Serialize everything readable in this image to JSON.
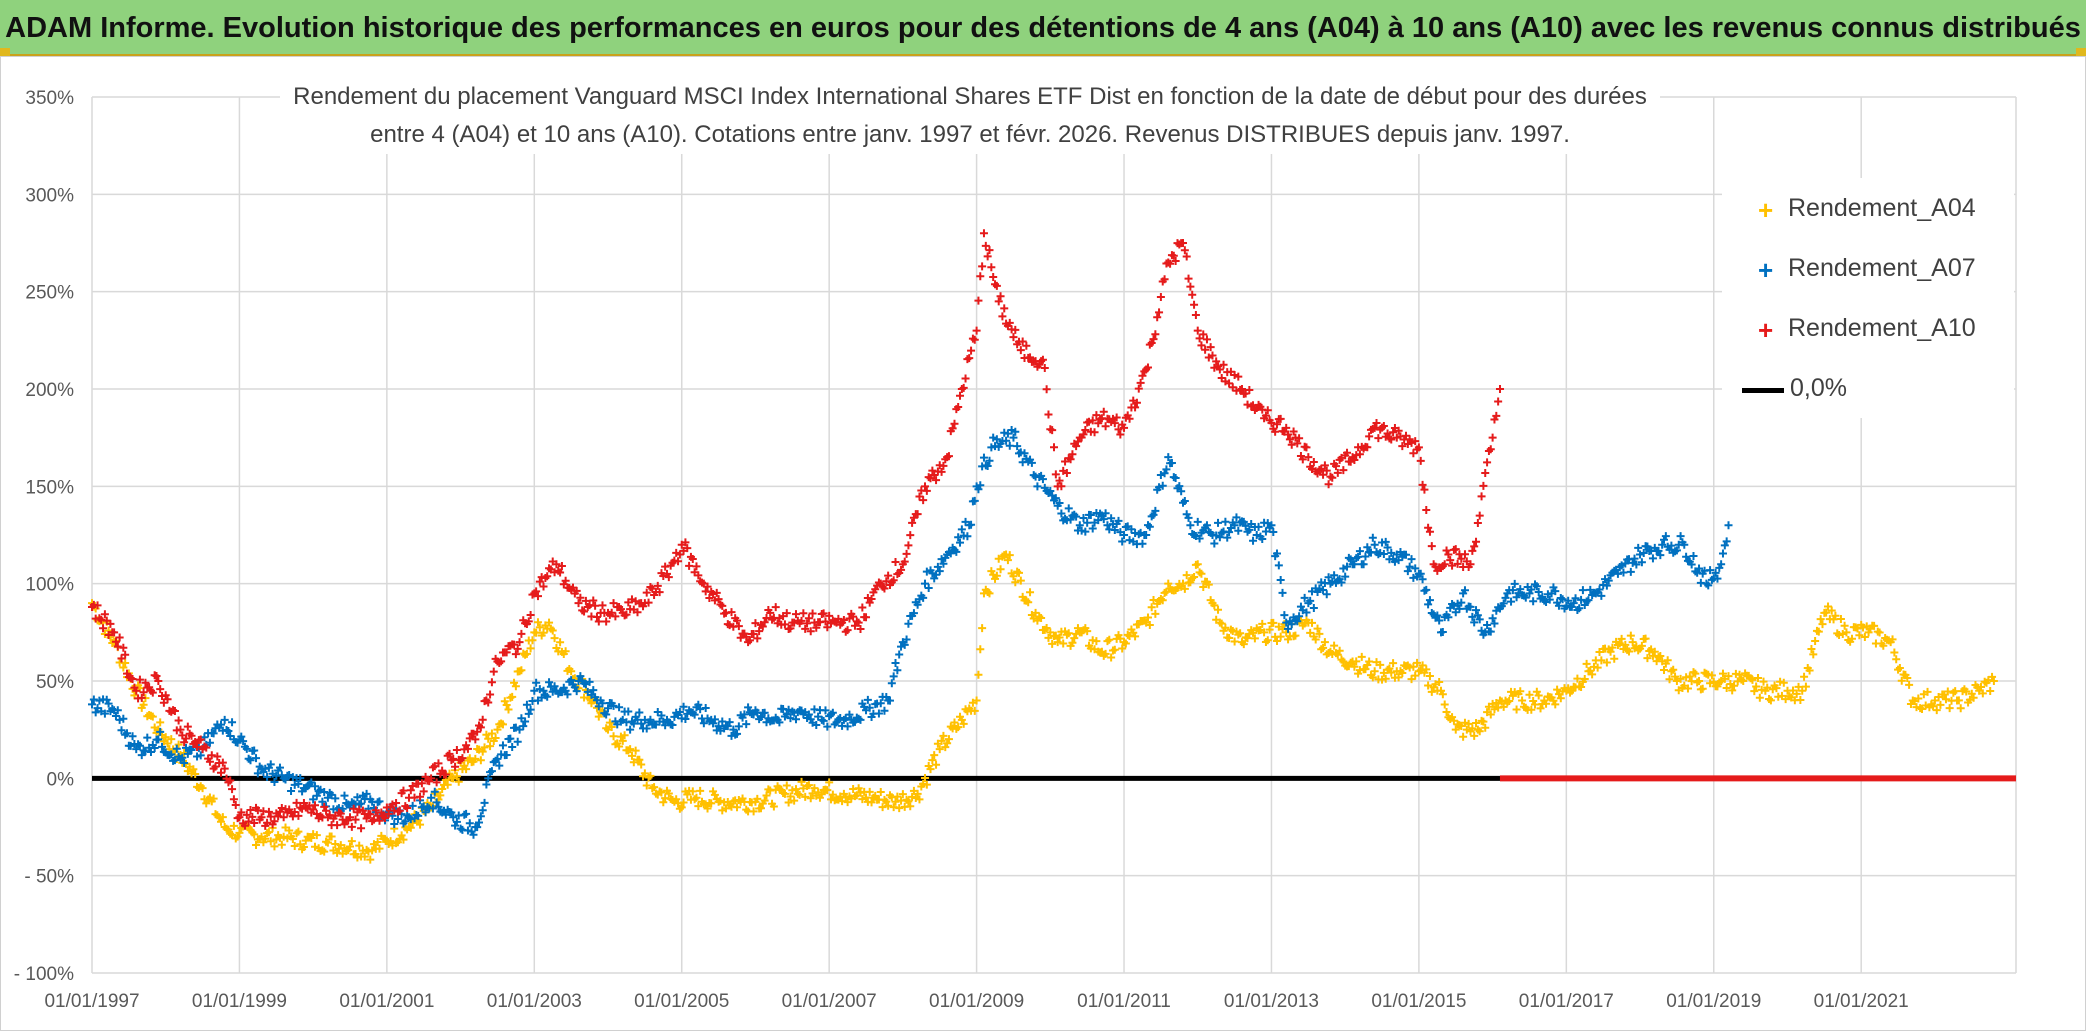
{
  "header": {
    "title": "ADAM Informe. Evolution historique des performances en euros pour des détentions de 4 ans (A04) à 10 ans (A10) avec les revenus connus distribués"
  },
  "chart_data": {
    "type": "scatter",
    "title_line1": "Rendement du placement Vanguard MSCI Index International Shares ETF Dist en fonction de la date de début pour des durées",
    "title_line2": "entre 4 (A04) et 10 ans (A10). Cotations entre janv. 1997 et févr. 2026. Revenus DISTRIBUES depuis janv. 1997.",
    "ylim": [
      -100,
      350
    ],
    "y_ticks": [
      -100,
      -50,
      0,
      50,
      100,
      150,
      200,
      250,
      300,
      350
    ],
    "y_tick_labels": [
      "- 100%",
      "- 50%",
      "0%",
      "50%",
      "100%",
      "150%",
      "200%",
      "250%",
      "300%",
      "350%"
    ],
    "x_ticks": [
      1997,
      1999,
      2001,
      2003,
      2005,
      2007,
      2009,
      2011,
      2013,
      2015,
      2017,
      2019,
      2021
    ],
    "x_tick_labels": [
      "01/01/1997",
      "01/01/1999",
      "01/01/2001",
      "01/01/2003",
      "01/01/2005",
      "01/01/2007",
      "01/01/2009",
      "01/01/2011",
      "01/01/2013",
      "01/01/2015",
      "01/01/2017",
      "01/01/2019",
      "01/01/2021"
    ],
    "xlim": [
      1997,
      2023.1
    ],
    "grid": true,
    "legend_position": "top-right",
    "series": [
      {
        "name": "Rendement_A04",
        "color": "#ffc000",
        "marker": "+",
        "x": [
          1997.0,
          1997.3,
          1997.6,
          1997.9,
          1998.2,
          1998.5,
          1998.8,
          1999.0,
          1999.3,
          1999.6,
          1999.9,
          2000.2,
          2000.5,
          2000.8,
          2001.0,
          2001.3,
          2001.6,
          2001.9,
          2002.2,
          2002.5,
          2002.8,
          2003.0,
          2003.2,
          2003.5,
          2003.8,
          2004.0,
          2004.3,
          2004.6,
          2004.9,
          2005.2,
          2005.5,
          2005.8,
          2006.0,
          2006.4,
          2006.8,
          2007.2,
          2007.6,
          2007.9,
          2008.2,
          2008.5,
          2008.8,
          2009.0,
          2009.1,
          2009.4,
          2009.8,
          2010.1,
          2010.4,
          2010.7,
          2011.0,
          2011.3,
          2011.6,
          2011.8,
          2012.0,
          2012.3,
          2012.6,
          2012.9,
          2013.2,
          2013.5,
          2013.8,
          2014.1,
          2014.4,
          2014.7,
          2015.0,
          2015.3,
          2015.5,
          2015.8,
          2016.1,
          2016.4,
          2016.7,
          2017.0,
          2017.3,
          2017.6,
          2017.9,
          2018.2,
          2018.5,
          2018.8,
          2019.1,
          2019.4,
          2019.7,
          2020.0,
          2020.2,
          2020.5,
          2020.8,
          2021.1,
          2021.4,
          2021.7,
          2022.0,
          2022.3,
          2022.6,
          2022.8
        ],
        "y": [
          90,
          70,
          45,
          25,
          12,
          -5,
          -25,
          -28,
          -30,
          -30,
          -32,
          -33,
          -35,
          -37,
          -32,
          -25,
          -15,
          0,
          10,
          25,
          55,
          75,
          80,
          55,
          40,
          25,
          15,
          -5,
          -12,
          -10,
          -12,
          -12,
          -12,
          -8,
          -5,
          -8,
          -10,
          -12,
          -8,
          15,
          30,
          40,
          95,
          115,
          85,
          70,
          75,
          65,
          70,
          80,
          100,
          100,
          110,
          80,
          70,
          75,
          75,
          80,
          65,
          60,
          55,
          55,
          55,
          45,
          25,
          25,
          40,
          40,
          40,
          45,
          55,
          65,
          70,
          65,
          50,
          50,
          50,
          50,
          45,
          45,
          45,
          85,
          75,
          75,
          70,
          40,
          40,
          40,
          45,
          50
        ]
      },
      {
        "name": "Rendement_A07",
        "color": "#0070c0",
        "marker": "+",
        "x": [
          1997.0,
          1997.3,
          1997.6,
          1997.9,
          1998.2,
          1998.5,
          1998.8,
          1999.0,
          1999.3,
          1999.6,
          1999.9,
          2000.2,
          2000.5,
          2000.8,
          2001.0,
          2001.3,
          2001.6,
          2001.9,
          2002.2,
          2002.5,
          2002.8,
          2003.0,
          2003.3,
          2003.6,
          2003.9,
          2004.2,
          2004.5,
          2004.8,
          2005.1,
          2005.4,
          2005.7,
          2006.0,
          2006.3,
          2006.6,
          2006.9,
          2007.2,
          2007.5,
          2007.8,
          2008.0,
          2008.3,
          2008.6,
          2008.9,
          2009.0,
          2009.2,
          2009.5,
          2009.8,
          2010.1,
          2010.4,
          2010.7,
          2011.0,
          2011.3,
          2011.6,
          2011.9,
          2012.2,
          2012.5,
          2012.8,
          2013.0,
          2013.2,
          2013.5,
          2013.8,
          2014.1,
          2014.4,
          2014.7,
          2015.0,
          2015.3,
          2015.6,
          2015.9,
          2016.2,
          2016.5,
          2016.8,
          2017.1,
          2017.4,
          2017.7,
          2018.0,
          2018.3,
          2018.6,
          2018.9,
          2019.1,
          2019.2
        ],
        "y": [
          38,
          35,
          15,
          20,
          10,
          15,
          30,
          20,
          5,
          0,
          -5,
          -10,
          -15,
          -12,
          -18,
          -20,
          -10,
          -20,
          -25,
          10,
          25,
          45,
          45,
          50,
          40,
          30,
          30,
          30,
          35,
          30,
          25,
          35,
          30,
          35,
          30,
          30,
          35,
          40,
          70,
          100,
          115,
          130,
          150,
          170,
          175,
          155,
          140,
          130,
          135,
          125,
          125,
          165,
          130,
          125,
          130,
          125,
          130,
          80,
          90,
          100,
          110,
          120,
          115,
          105,
          75,
          95,
          75,
          95,
          95,
          95,
          90,
          95,
          105,
          115,
          120,
          120,
          100,
          110,
          130
        ]
      },
      {
        "name": "Rendement_A10",
        "color": "#e51b1b",
        "marker": "+",
        "x": [
          1997.0,
          1997.3,
          1997.6,
          1997.9,
          1998.2,
          1998.5,
          1998.8,
          1999.0,
          1999.3,
          1999.6,
          1999.9,
          2000.2,
          2000.5,
          2000.8,
          2001.0,
          2001.3,
          2001.6,
          2001.9,
          2002.2,
          2002.5,
          2002.8,
          2003.0,
          2003.3,
          2003.6,
          2003.9,
          2004.2,
          2004.5,
          2004.8,
          2005.0,
          2005.3,
          2005.6,
          2005.9,
          2006.2,
          2006.5,
          2006.8,
          2007.1,
          2007.4,
          2007.7,
          2008.0,
          2008.3,
          2008.6,
          2008.8,
          2009.0,
          2009.1,
          2009.3,
          2009.6,
          2009.9,
          2010.1,
          2010.4,
          2010.7,
          2011.0,
          2011.3,
          2011.6,
          2011.8,
          2012.0,
          2012.3,
          2012.6,
          2012.9,
          2013.2,
          2013.5,
          2013.8,
          2014.1,
          2014.4,
          2014.7,
          2015.0,
          2015.2,
          2015.4,
          2015.7,
          2016.0,
          2016.1
        ],
        "y": [
          88,
          75,
          45,
          50,
          25,
          15,
          5,
          -20,
          -20,
          -20,
          -15,
          -20,
          -20,
          -22,
          -15,
          -10,
          0,
          10,
          20,
          60,
          70,
          95,
          110,
          90,
          85,
          85,
          90,
          105,
          120,
          100,
          85,
          70,
          85,
          80,
          80,
          80,
          80,
          100,
          110,
          150,
          165,
          200,
          230,
          280,
          245,
          220,
          215,
          150,
          175,
          185,
          180,
          210,
          265,
          275,
          230,
          210,
          200,
          185,
          180,
          165,
          155,
          165,
          180,
          175,
          170,
          110,
          115,
          110,
          175,
          200
        ]
      },
      {
        "name": "0,0%",
        "color": "#000000",
        "marker": "line",
        "x": [
          1997.0,
          2016.1
        ],
        "y": [
          0,
          0
        ]
      }
    ],
    "extra_marks": [
      {
        "name": "A10 zero band",
        "color": "#e51b1b",
        "x": [
          2016.1,
          2023.1
        ],
        "y": [
          0,
          0
        ]
      }
    ]
  }
}
